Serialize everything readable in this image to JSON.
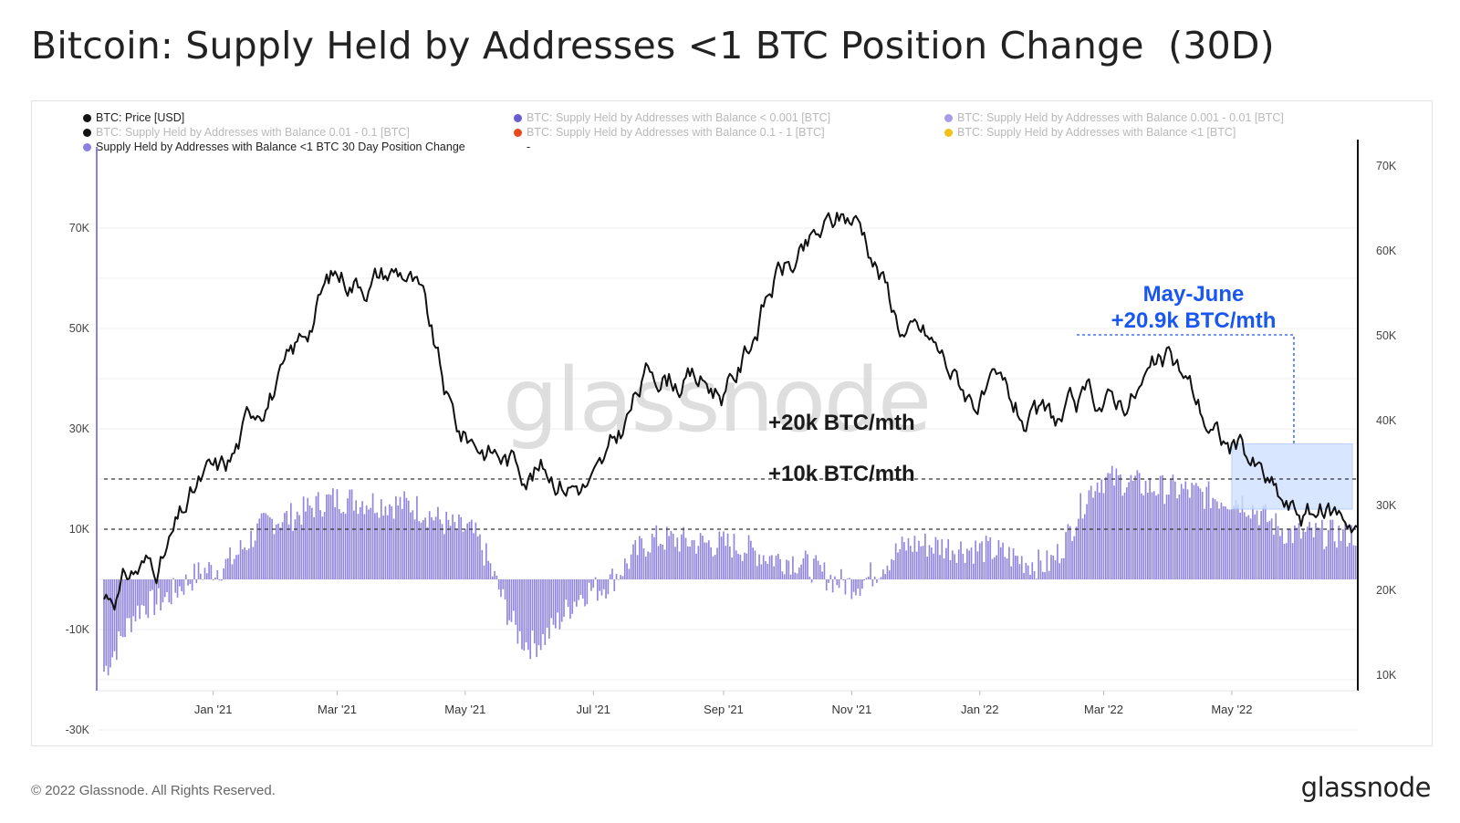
{
  "title": "Bitcoin: Supply Held by Addresses <1 BTC Position Change  (30D)",
  "legend": {
    "items": [
      {
        "label": "BTC: Price [USD]",
        "color": "#111111",
        "dim": false
      },
      {
        "label": "BTC: Supply Held by Addresses with Balance < 0.001 [BTC]",
        "color": "#6a5ccf",
        "dim": true
      },
      {
        "label": "BTC: Supply Held by Addresses with Balance 0.001 - 0.01 [BTC]",
        "color": "#a99be8",
        "dim": true
      },
      {
        "label": "BTC: Supply Held by Addresses with Balance 0.01 - 0.1 [BTC]",
        "color": "#111111",
        "dim": true
      },
      {
        "label": "BTC: Supply Held by Addresses with Balance 0.1 - 1 [BTC]",
        "color": "#e8491d",
        "dim": true
      },
      {
        "label": "BTC: Supply Held by Addresses with Balance <1 [BTC]",
        "color": "#f2c21b",
        "dim": true
      },
      {
        "label": "Supply Held by Addresses with Balance <1 BTC 30 Day Position Change",
        "color": "#8b7fe0",
        "dim": false
      }
    ],
    "extra": "-"
  },
  "watermark": "glassnode",
  "annotations": {
    "line20": "+20k BTC/mth",
    "line10": "+10k BTC/mth",
    "highlight_line1": "May-June",
    "highlight_line2": "+20.9k BTC/mth"
  },
  "colors": {
    "bars": "#9185dc",
    "price": "#111111",
    "highlight": "#1a56f0",
    "highlight_fill": "#cfe0ff"
  },
  "footer": {
    "copyright": "© 2022 Glassnode. All Rights Reserved.",
    "brand": "glassnode"
  },
  "chart_data": {
    "type": "bar",
    "x_ticks": [
      "Jan '21",
      "Mar '21",
      "May '21",
      "Jul '21",
      "Sep '21",
      "Nov '21",
      "Jan '22",
      "Mar '22",
      "May '22"
    ],
    "left_axis": {
      "ticks": [
        "70K",
        "50K",
        "30K",
        "10K",
        "-10K",
        "-30K"
      ],
      "range": [
        -30000,
        70000
      ]
    },
    "right_axis": {
      "ticks": [
        "70K",
        "60K",
        "50K",
        "40K",
        "30K",
        "20K",
        "10K"
      ],
      "range": [
        10000,
        70000
      ]
    },
    "reference_lines": [
      20000,
      10000
    ],
    "highlight_region": {
      "from": "2022-05-01",
      "to": "2022-06-30",
      "value": 20900
    },
    "x": [
      "2020-11",
      "2020-12",
      "2021-01",
      "2021-02",
      "2021-03",
      "2021-04",
      "2021-05",
      "2021-06",
      "2021-07",
      "2021-08",
      "2021-09",
      "2021-10",
      "2021-11",
      "2021-12",
      "2022-01",
      "2022-02",
      "2022-03",
      "2022-04",
      "2022-05",
      "2022-06"
    ],
    "series": [
      {
        "name": "Supply Held by Addresses with Balance <1 BTC 30 Day Position Change",
        "axis": "left",
        "values": [
          -22000,
          -5000,
          2000,
          12000,
          16000,
          15000,
          10000,
          -13000,
          -2000,
          8000,
          7000,
          4000,
          -1000,
          7000,
          6000,
          3000,
          20000,
          18000,
          16000,
          9000
        ]
      },
      {
        "name": "BTC: Price [USD]",
        "axis": "right",
        "values": [
          18000,
          23000,
          33000,
          45000,
          57000,
          58000,
          38000,
          35000,
          33000,
          46000,
          44000,
          58000,
          64000,
          50000,
          43000,
          39000,
          42000,
          46000,
          37000,
          29000
        ]
      }
    ]
  }
}
